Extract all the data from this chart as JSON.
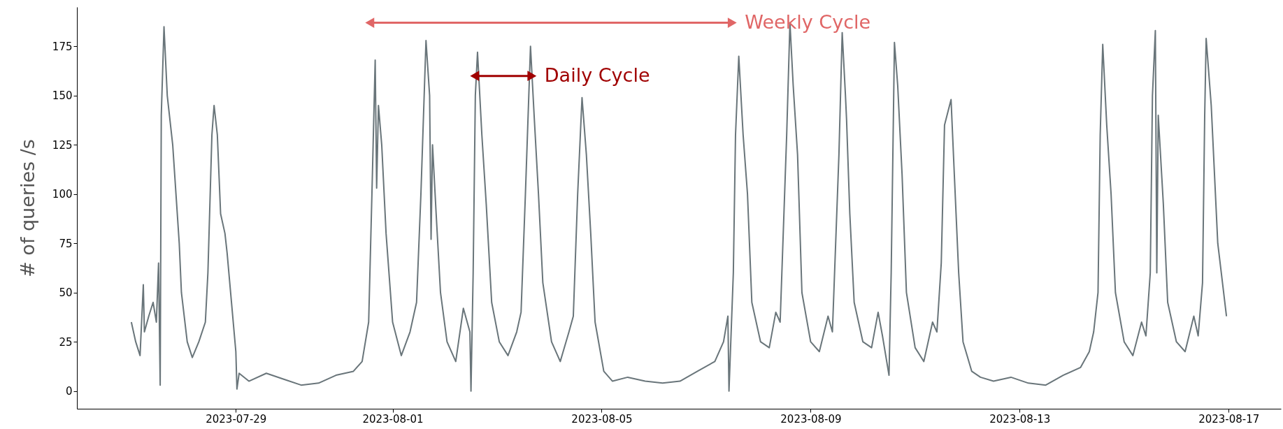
{
  "chart_data": {
    "type": "line",
    "ylabel": "# of queries /s",
    "xlim": [
      "2023-07-25T23:00",
      "2023-08-18T00:00"
    ],
    "xticks": [
      "2023-07-29",
      "2023-08-01",
      "2023-08-05",
      "2023-08-09",
      "2023-08-13",
      "2023-08-17"
    ],
    "ylim": [
      -9,
      195
    ],
    "yticks": [
      0,
      25,
      50,
      75,
      100,
      125,
      150,
      175
    ],
    "grid": false,
    "marker": "none",
    "line_style": "solid",
    "series": [
      {
        "color": "#69757a",
        "x": [
          "2023-07-27T00:00",
          "2023-07-27T02:00",
          "2023-07-27T04:00",
          "2023-07-27T05:30",
          "2023-07-27T06:00",
          "2023-07-27T08:00",
          "2023-07-27T10:00",
          "2023-07-27T11:30",
          "2023-07-27T12:30",
          "2023-07-27T13:15",
          "2023-07-27T13:45",
          "2023-07-27T15:00",
          "2023-07-27T16:30",
          "2023-07-27T19:00",
          "2023-07-27T22:00",
          "2023-07-27T23:00",
          "2023-07-28T01:40",
          "2023-07-28T04:00",
          "2023-07-28T07:00",
          "2023-07-28T10:00",
          "2023-07-28T11:10",
          "2023-07-28T13:00",
          "2023-07-28T14:00",
          "2023-07-28T15:30",
          "2023-07-28T17:00",
          "2023-07-28T19:00",
          "2023-07-28T20:00",
          "2023-07-28T22:00",
          "2023-07-29T00:00",
          "2023-07-29T00:30",
          "2023-07-29T01:30",
          "2023-07-29T06:00",
          "2023-07-29T14:00",
          "2023-07-29T22:00",
          "2023-07-30T06:00",
          "2023-07-30T14:00",
          "2023-07-30T22:00",
          "2023-07-31T06:00",
          "2023-07-31T10:00",
          "2023-07-31T13:00",
          "2023-07-31T14:30",
          "2023-07-31T16:00",
          "2023-07-31T16:40",
          "2023-07-31T17:30",
          "2023-07-31T19:00",
          "2023-07-31T21:00",
          "2023-08-01T00:00",
          "2023-08-01T04:00",
          "2023-08-01T08:00",
          "2023-08-01T11:00",
          "2023-08-01T13:00",
          "2023-08-01T15:20",
          "2023-08-01T17:00",
          "2023-08-01T17:40",
          "2023-08-01T18:20",
          "2023-08-01T20:00",
          "2023-08-01T22:00",
          "2023-08-02T01:00",
          "2023-08-02T05:00",
          "2023-08-02T08:30",
          "2023-08-02T11:30",
          "2023-08-02T12:00",
          "2023-08-02T13:00",
          "2023-08-02T14:00",
          "2023-08-02T15:00",
          "2023-08-02T17:00",
          "2023-08-02T19:00",
          "2023-08-02T21:30",
          "2023-08-03T01:00",
          "2023-08-03T05:00",
          "2023-08-03T09:00",
          "2023-08-03T11:00",
          "2023-08-03T13:00",
          "2023-08-03T15:20",
          "2023-08-03T17:00",
          "2023-08-03T19:00",
          "2023-08-03T21:00",
          "2023-08-04T01:00",
          "2023-08-04T05:00",
          "2023-08-04T09:00",
          "2023-08-04T11:00",
          "2023-08-04T13:00",
          "2023-08-04T15:00",
          "2023-08-04T17:00",
          "2023-08-04T19:00",
          "2023-08-04T21:00",
          "2023-08-05T01:00",
          "2023-08-05T05:00",
          "2023-08-05T12:00",
          "2023-08-05T20:00",
          "2023-08-06T04:00",
          "2023-08-06T12:00",
          "2023-08-06T20:00",
          "2023-08-07T04:00",
          "2023-08-07T08:00",
          "2023-08-07T10:00",
          "2023-08-07T10:30",
          "2023-08-07T12:30",
          "2023-08-07T13:30",
          "2023-08-07T15:00",
          "2023-08-07T17:00",
          "2023-08-07T19:00",
          "2023-08-07T21:00",
          "2023-08-08T01:00",
          "2023-08-08T05:00",
          "2023-08-08T08:00",
          "2023-08-08T10:00",
          "2023-08-08T13:00",
          "2023-08-08T14:30",
          "2023-08-08T16:00",
          "2023-08-08T18:00",
          "2023-08-08T20:00",
          "2023-08-09T00:00",
          "2023-08-09T04:00",
          "2023-08-09T08:00",
          "2023-08-09T10:00",
          "2023-08-09T13:00",
          "2023-08-09T14:30",
          "2023-08-09T16:00",
          "2023-08-09T16:30",
          "2023-08-09T18:00",
          "2023-08-09T20:00",
          "2023-08-10T00:00",
          "2023-08-10T04:00",
          "2023-08-10T07:00",
          "2023-08-10T09:00",
          "2023-08-10T12:00",
          "2023-08-10T13:00",
          "2023-08-10T14:30",
          "2023-08-10T16:00",
          "2023-08-10T18:00",
          "2023-08-10T20:00",
          "2023-08-11T00:00",
          "2023-08-11T04:00",
          "2023-08-11T08:00",
          "2023-08-11T10:00",
          "2023-08-11T12:00",
          "2023-08-11T13:30",
          "2023-08-11T16:30",
          "2023-08-11T18:00",
          "2023-08-11T20:00",
          "2023-08-11T22:00",
          "2023-08-12T02:00",
          "2023-08-12T06:00",
          "2023-08-12T12:00",
          "2023-08-12T20:00",
          "2023-08-13T04:00",
          "2023-08-13T12:00",
          "2023-08-13T20:00",
          "2023-08-14T04:00",
          "2023-08-14T08:00",
          "2023-08-14T10:00",
          "2023-08-14T12:00",
          "2023-08-14T13:00",
          "2023-08-14T14:10",
          "2023-08-14T16:00",
          "2023-08-14T18:00",
          "2023-08-14T20:00",
          "2023-08-15T00:00",
          "2023-08-15T04:00",
          "2023-08-15T08:00",
          "2023-08-15T10:00",
          "2023-08-15T12:00",
          "2023-08-15T13:00",
          "2023-08-15T14:20",
          "2023-08-15T15:00",
          "2023-08-15T15:40",
          "2023-08-15T18:00",
          "2023-08-15T20:00",
          "2023-08-16T00:00",
          "2023-08-16T04:00",
          "2023-08-16T08:00",
          "2023-08-16T10:00",
          "2023-08-16T12:00",
          "2023-08-16T13:00",
          "2023-08-16T13:40",
          "2023-08-16T16:00",
          "2023-08-16T17:30",
          "2023-08-16T19:00",
          "2023-08-16T23:00"
        ],
        "values": [
          35,
          25,
          18,
          54,
          30,
          38,
          45,
          35,
          65,
          3,
          140,
          185,
          150,
          125,
          75,
          50,
          25,
          17,
          25,
          35,
          60,
          130,
          145,
          130,
          90,
          80,
          70,
          45,
          20,
          1,
          9,
          5,
          9,
          6,
          3,
          4,
          8,
          10,
          15,
          35,
          100,
          168,
          103,
          145,
          125,
          80,
          35,
          18,
          30,
          45,
          100,
          178,
          150,
          77,
          125,
          90,
          50,
          25,
          15,
          42,
          30,
          0,
          60,
          150,
          172,
          130,
          95,
          45,
          25,
          18,
          30,
          40,
          100,
          175,
          140,
          100,
          55,
          25,
          15,
          30,
          38,
          100,
          149,
          120,
          80,
          35,
          10,
          5,
          7,
          5,
          4,
          5,
          10,
          15,
          25,
          38,
          0,
          60,
          130,
          170,
          130,
          100,
          45,
          25,
          22,
          40,
          35,
          130,
          187,
          155,
          120,
          50,
          25,
          20,
          38,
          30,
          120,
          182,
          150,
          138,
          90,
          45,
          25,
          22,
          40,
          28,
          8,
          60,
          177,
          155,
          110,
          50,
          22,
          15,
          35,
          30,
          65,
          135,
          148,
          110,
          60,
          25,
          10,
          7,
          5,
          7,
          4,
          3,
          8,
          12,
          20,
          30,
          50,
          130,
          176,
          135,
          100,
          50,
          25,
          18,
          35,
          28,
          60,
          150,
          183,
          60,
          140,
          95,
          45,
          25,
          20,
          38,
          28,
          55,
          140,
          179,
          145,
          110,
          75,
          38
        ]
      },
      {
        "color": "#e06666",
        "marker": "triangle",
        "x": [
          "2023-07-31T13:30",
          "2023-08-07T12:00"
        ],
        "values": [
          187,
          187
        ]
      },
      {
        "color": "#a00000",
        "marker": "triangle",
        "x": [
          "2023-08-02T13:40",
          "2023-08-03T16:00"
        ],
        "values": [
          160,
          160
        ]
      }
    ],
    "annotations": [
      "Weekly Cycle",
      "Daily Cycle"
    ]
  }
}
